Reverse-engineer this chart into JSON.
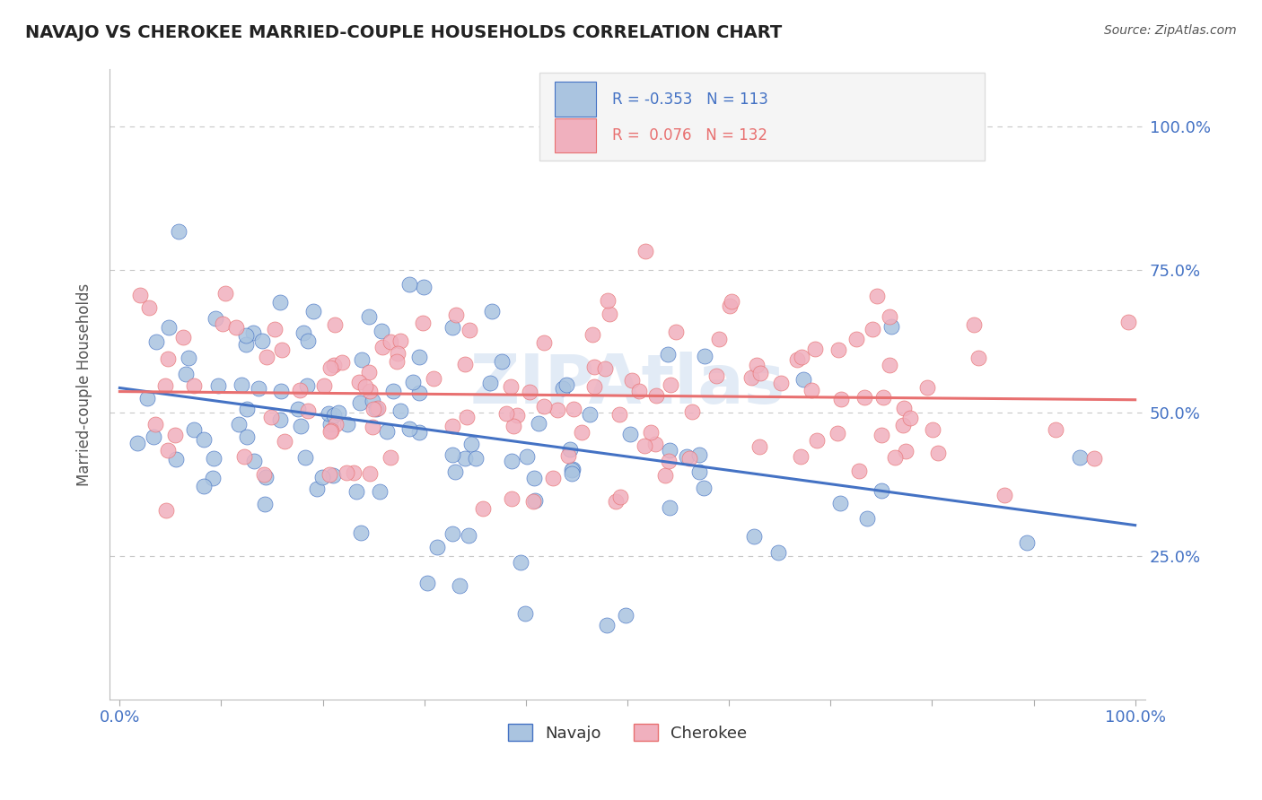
{
  "title": "NAVAJO VS CHEROKEE MARRIED-COUPLE HOUSEHOLDS CORRELATION CHART",
  "source_text": "Source: ZipAtlas.com",
  "ylabel": "Married-couple Households",
  "navajo_R": -0.353,
  "navajo_N": 113,
  "cherokee_R": 0.076,
  "cherokee_N": 132,
  "navajo_color": "#aac4e0",
  "cherokee_color": "#f0b0be",
  "navajo_line_color": "#4472c4",
  "cherokee_line_color": "#e87070",
  "watermark_color": "#d0dff0",
  "background_color": "#ffffff",
  "title_color": "#222222",
  "tick_label_color": "#4472c4",
  "grid_color": "#c8c8c8",
  "legend_box_color": "#f5f5f5",
  "legend_border_color": "#dddddd"
}
